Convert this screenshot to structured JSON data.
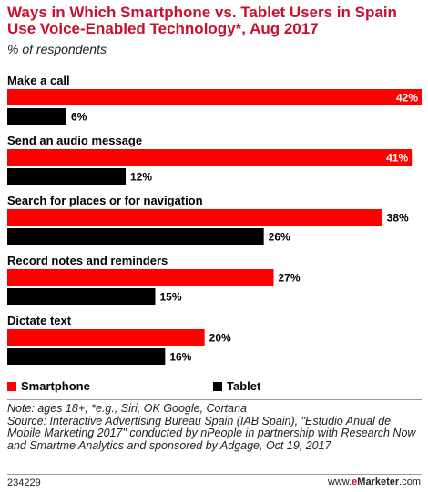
{
  "header": {
    "title": "Ways in Which Smartphone vs. Tablet Users in Spain Use Voice-Enabled Technology*, Aug 2017",
    "subtitle": "% of respondents"
  },
  "chart_data": {
    "type": "bar",
    "orientation": "horizontal",
    "categories": [
      "Make a call",
      "Send an audio message",
      "Search for places or for navigation",
      "Record notes and reminders",
      "Dictate text"
    ],
    "series": [
      {
        "name": "Smartphone",
        "color": "#ff0000",
        "values": [
          42,
          41,
          38,
          27,
          20
        ]
      },
      {
        "name": "Tablet",
        "color": "#000000",
        "values": [
          6,
          12,
          26,
          15,
          16
        ]
      }
    ],
    "value_suffix": "%",
    "xlim": [
      0,
      42
    ],
    "legend_position": "bottom"
  },
  "legend": {
    "smartphone_label": "Smartphone",
    "tablet_label": "Tablet"
  },
  "notes": {
    "note": "Note: ages 18+; *e.g., Siri, OK Google, Cortana",
    "source": "Source: Interactive Advertising Bureau Spain (IAB Spain), \"Estudio Anual de Mobile Marketing 2017\" conducted by nPeople in partnership with Research Now and Smartme Analytics and sponsored by Adgage, Oct 19, 2017"
  },
  "footer": {
    "chart_id": "234229",
    "brand_prefix": "www.",
    "brand_e": "e",
    "brand_rest": "Marketer",
    "brand_suffix": ".com"
  }
}
